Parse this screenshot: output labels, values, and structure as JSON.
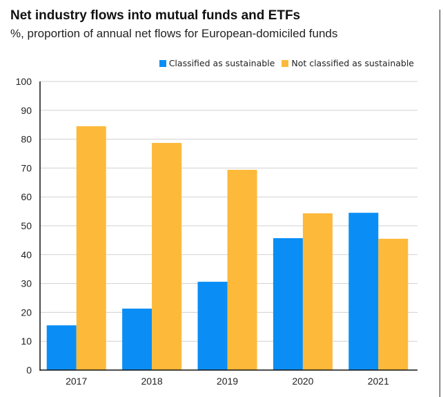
{
  "chart_data": {
    "type": "bar",
    "title": "Net industry flows into mutual funds and ETFs",
    "subtitle": "%, proportion of annual net flows for European-domiciled funds",
    "xlabel": "",
    "ylabel": "",
    "categories": [
      "2017",
      "2018",
      "2019",
      "2020",
      "2021"
    ],
    "series": [
      {
        "name": "Classified as sustainable",
        "color": "#0a8ef5",
        "values": [
          15.5,
          21.3,
          30.6,
          45.7,
          54.5
        ]
      },
      {
        "name": "Not classified as sustainable",
        "color": "#fdb93a",
        "values": [
          84.5,
          78.7,
          69.4,
          54.3,
          45.5
        ]
      }
    ],
    "ylim": [
      0,
      100
    ],
    "yticks": [
      "0",
      "10",
      "20",
      "30",
      "40",
      "50",
      "60",
      "70",
      "80",
      "90",
      "100"
    ],
    "grid": true,
    "legend_position": "top-right"
  }
}
